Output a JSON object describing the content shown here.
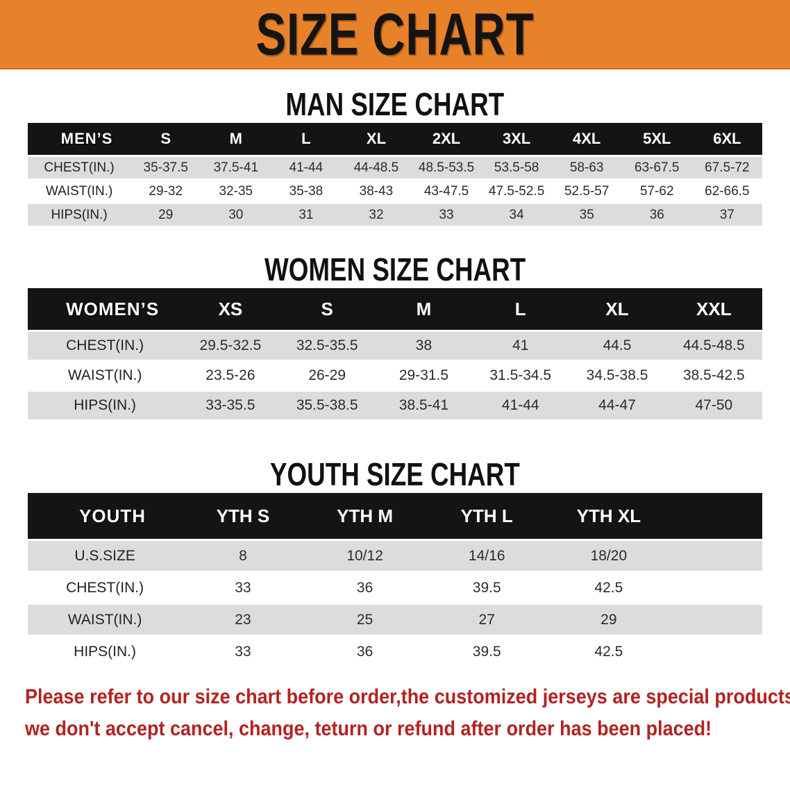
{
  "banner": {
    "title": "SIZE CHART"
  },
  "men": {
    "heading": "MAN SIZE CHART",
    "corner": "MEN’S",
    "columns": [
      "S",
      "M",
      "L",
      "XL",
      "2XL",
      "3XL",
      "4XL",
      "5XL",
      "6XL"
    ],
    "rows": [
      {
        "label": "CHEST(IN.)",
        "values": [
          "35-37.5",
          "37.5-41",
          "41-44",
          "44-48.5",
          "48.5-53.5",
          "53.5-58",
          "58-63",
          "63-67.5",
          "67.5-72"
        ]
      },
      {
        "label": "WAIST(IN.)",
        "values": [
          "29-32",
          "32-35",
          "35-38",
          "38-43",
          "43-47.5",
          "47.5-52.5",
          "52.5-57",
          "57-62",
          "62-66.5"
        ]
      },
      {
        "label": "HIPS(IN.)",
        "values": [
          "29",
          "30",
          "31",
          "32",
          "33",
          "34",
          "35",
          "36",
          "37"
        ]
      }
    ]
  },
  "women": {
    "heading": "WOMEN SIZE CHART",
    "corner": "WOMEN’S",
    "columns": [
      "XS",
      "S",
      "M",
      "L",
      "XL",
      "XXL"
    ],
    "rows": [
      {
        "label": "CHEST(IN.)",
        "values": [
          "29.5-32.5",
          "32.5-35.5",
          "38",
          "41",
          "44.5",
          "44.5-48.5"
        ]
      },
      {
        "label": "WAIST(IN.)",
        "values": [
          "23.5-26",
          "26-29",
          "29-31.5",
          "31.5-34.5",
          "34.5-38.5",
          "38.5-42.5"
        ]
      },
      {
        "label": "HIPS(IN.)",
        "values": [
          "33-35.5",
          "35.5-38.5",
          "38.5-41",
          "41-44",
          "44-47",
          "47-50"
        ]
      }
    ]
  },
  "youth": {
    "heading": "YOUTH SIZE CHART",
    "corner": "YOUTH",
    "columns": [
      "YTH S",
      "YTH M",
      "YTH L",
      "YTH XL"
    ],
    "rows": [
      {
        "label": "U.S.SIZE",
        "values": [
          "8",
          "10/12",
          "14/16",
          "18/20"
        ]
      },
      {
        "label": "CHEST(IN.)",
        "values": [
          "33",
          "36",
          "39.5",
          "42.5"
        ]
      },
      {
        "label": "WAIST(IN.)",
        "values": [
          "23",
          "25",
          "27",
          "29"
        ]
      },
      {
        "label": "HIPS(IN.)",
        "values": [
          "33",
          "36",
          "39.5",
          "42.5"
        ]
      }
    ]
  },
  "disclaimer": {
    "line1": "Please refer to our size chart before order,the customized jerseys are special products,",
    "line2": "we don't accept cancel, change, teturn or refund after order has been placed!"
  },
  "colors": {
    "banner_orange": "#E8822A",
    "header_black": "#141414",
    "row_gray": "#DCDCDC",
    "disclaimer_red": "#B22222"
  }
}
